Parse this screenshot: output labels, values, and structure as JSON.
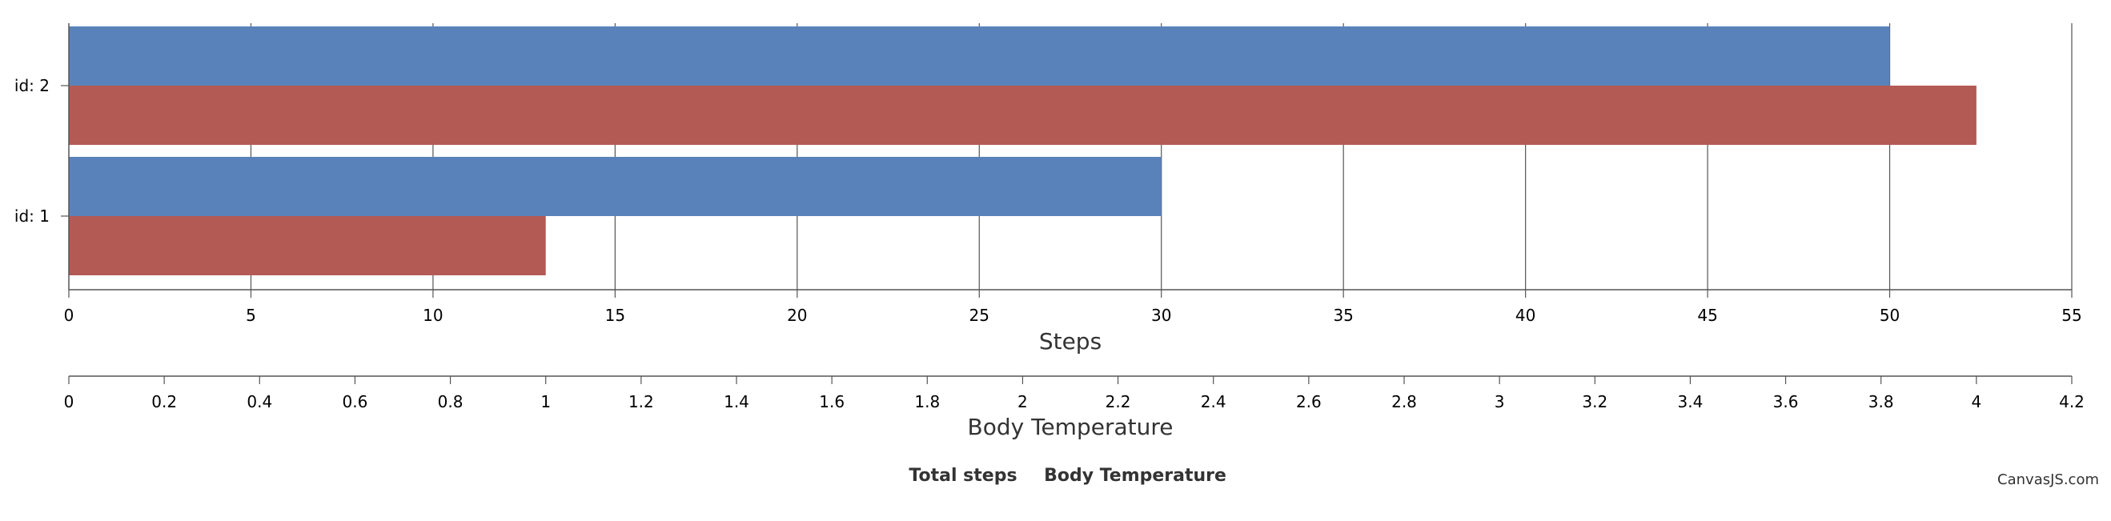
{
  "chart_data": {
    "type": "bar",
    "orientation": "horizontal",
    "categories": [
      "id: 1",
      "id: 2"
    ],
    "series": [
      {
        "name": "Total steps",
        "axis": "primary",
        "color": "#5A82BA",
        "values": [
          30,
          50
        ]
      },
      {
        "name": "Body Temperature",
        "axis": "secondary",
        "color": "#B35A54",
        "values": [
          1.0,
          4.0
        ]
      }
    ],
    "axes": {
      "primary": {
        "title": "Steps",
        "range": [
          0,
          55
        ],
        "interval": 5,
        "gridlines": true
      },
      "secondary": {
        "title": "Body Temperature",
        "range": [
          0,
          4.2
        ],
        "interval": 0.2,
        "gridlines": false
      }
    },
    "legend": {
      "placement": "bottom-center",
      "items": [
        "Total steps",
        "Body Temperature"
      ]
    },
    "credit": "CanvasJS.com"
  }
}
